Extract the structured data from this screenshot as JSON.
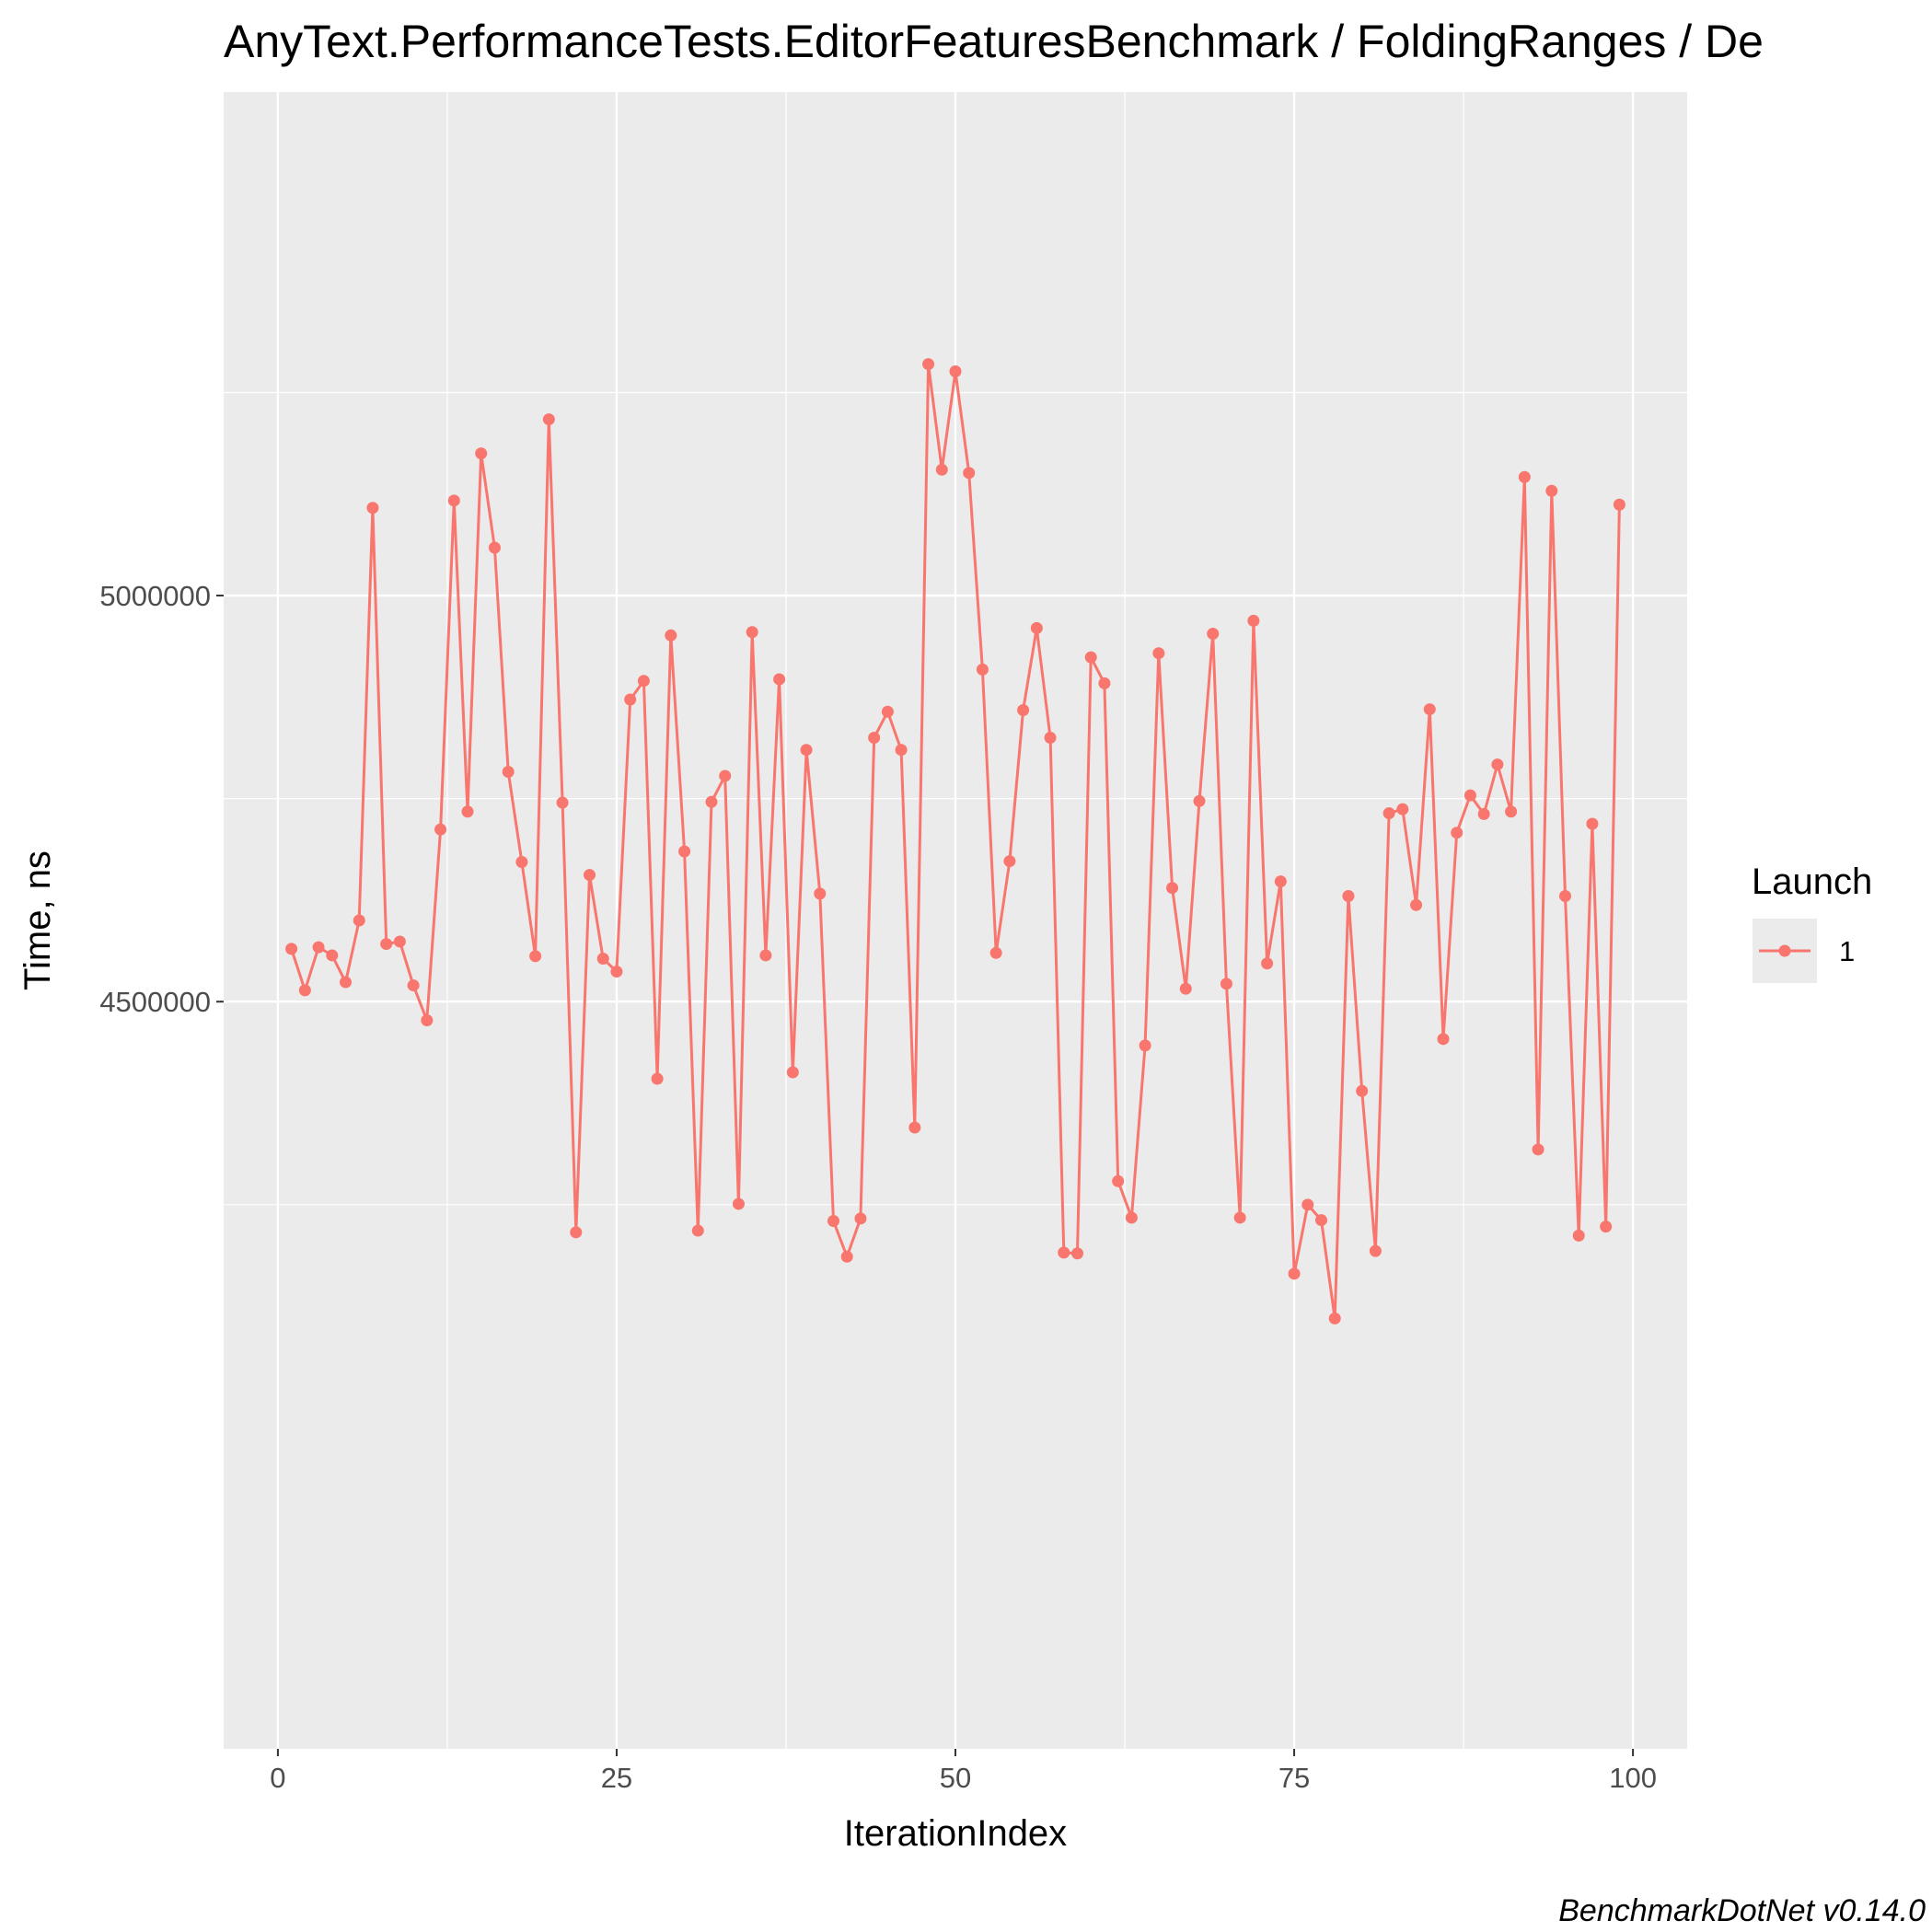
{
  "chart_data": {
    "type": "line",
    "title": "AnyText.PerformanceTests.EditorFeaturesBenchmark / FoldingRanges / De",
    "xlabel": "IterationIndex",
    "ylabel": "Time, ns",
    "caption": "BenchmarkDotNet v0.14.0",
    "xlim": [
      -4,
      104
    ],
    "ylim": [
      3580000,
      5620000
    ],
    "x_ticks": [
      0,
      25,
      50,
      75,
      100
    ],
    "x_tick_labels": [
      "0",
      "25",
      "50",
      "75",
      "100"
    ],
    "y_ticks": [
      4500000,
      5000000
    ],
    "y_tick_labels": [
      "4500000",
      "5000000"
    ],
    "y_minor_gridlines": [
      4250000,
      4750000,
      5250000
    ],
    "grid": true,
    "legend": {
      "title": "Launch",
      "position": "right",
      "entries": [
        "1"
      ]
    },
    "colors": {
      "series": "#f8766d",
      "panel": "#ebebeb",
      "grid": "#ffffff"
    },
    "series": [
      {
        "name": "1",
        "x": [
          1,
          2,
          3,
          4,
          5,
          6,
          7,
          8,
          9,
          10,
          11,
          12,
          13,
          14,
          15,
          16,
          17,
          18,
          19,
          20,
          21,
          22,
          23,
          24,
          25,
          26,
          27,
          28,
          29,
          30,
          31,
          32,
          33,
          34,
          35,
          36,
          37,
          38,
          39,
          40,
          41,
          42,
          43,
          44,
          45,
          46,
          47,
          48,
          49,
          50,
          51,
          52,
          53,
          54,
          55,
          56,
          57,
          58,
          59,
          60,
          61,
          62,
          63,
          64,
          65,
          66,
          67,
          68,
          69,
          70,
          71,
          72,
          73,
          74,
          75,
          76,
          77,
          78,
          79,
          80,
          81,
          82,
          83,
          84,
          85,
          86,
          87,
          88,
          89,
          90,
          91,
          92,
          93,
          94,
          95,
          96,
          97,
          98,
          99
        ],
        "values": [
          4565000,
          4514000,
          4567000,
          4557000,
          4524000,
          4600000,
          5108000,
          4571000,
          4574000,
          4520000,
          4477000,
          4712000,
          5117000,
          4734000,
          5175000,
          5059000,
          4783000,
          4672000,
          4556000,
          5217000,
          4745000,
          4216000,
          4656000,
          4553000,
          4537000,
          4872000,
          4895000,
          4405000,
          4951000,
          4685000,
          4218000,
          4746000,
          4778000,
          4251000,
          4955000,
          4557000,
          4897000,
          4413000,
          4810000,
          4633000,
          4230000,
          4186000,
          4233000,
          4825000,
          4857000,
          4810000,
          4345000,
          5285000,
          5155000,
          5276000,
          5151000,
          4909000,
          4560000,
          4673000,
          4859000,
          4960000,
          4825000,
          4191000,
          4190000,
          4924000,
          4892000,
          4279000,
          4234000,
          4446000,
          4929000,
          4640000,
          4516000,
          4747000,
          4953000,
          4522000,
          4234000,
          4969000,
          4547000,
          4648000,
          4165000,
          4250000,
          4231000,
          4110000,
          4630000,
          4390000,
          4193000,
          4732000,
          4737000,
          4619000,
          4860000,
          4454000,
          4708000,
          4754000,
          4731000,
          4792000,
          4734000,
          5146000,
          4318000,
          5129000,
          4630000,
          4212000,
          4719000,
          4223000,
          5112000
        ]
      }
    ]
  }
}
